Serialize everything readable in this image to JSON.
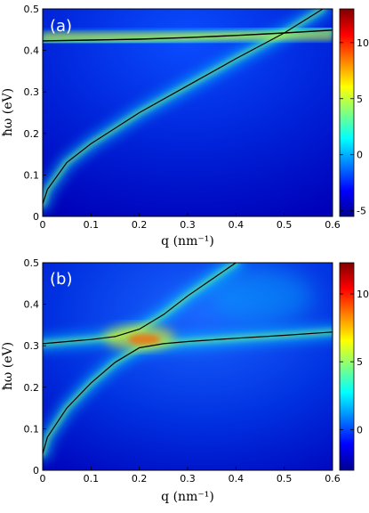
{
  "colors": {
    "colormap": [
      "#00008f",
      "#0000ff",
      "#0080ff",
      "#00ffff",
      "#80ff80",
      "#ffff00",
      "#ff8000",
      "#ff0000",
      "#800000"
    ],
    "curve": "#000000",
    "panel_label": "#ffffff"
  },
  "chart_data": [
    {
      "type": "heatmap",
      "panel_label": "(a)",
      "xlabel": "q (nm⁻¹)",
      "ylabel": "ħω (eV)",
      "xlim": [
        0,
        0.6
      ],
      "ylim": [
        0,
        0.5
      ],
      "x_ticks": [
        "0",
        "0.1",
        "0.2",
        "0.3",
        "0.4",
        "0.5",
        "0.6"
      ],
      "y_ticks": [
        "0",
        "0.1",
        "0.2",
        "0.3",
        "0.4",
        "0.5"
      ],
      "colorbar": {
        "range": [
          -5.5,
          13
        ],
        "ticks": [
          "-5",
          "0",
          "5",
          "10"
        ]
      },
      "series": [
        {
          "x": [
            0.0,
            0.1,
            0.2,
            0.3,
            0.4,
            0.5,
            0.6
          ],
          "y": [
            0.423,
            0.425,
            0.427,
            0.431,
            0.436,
            0.442,
            0.449
          ]
        },
        {
          "x": [
            0.0,
            0.01,
            0.05,
            0.1,
            0.2,
            0.3,
            0.4,
            0.5,
            0.58
          ],
          "y": [
            0.03,
            0.065,
            0.13,
            0.175,
            0.25,
            0.315,
            0.38,
            0.442,
            0.5
          ]
        }
      ]
    },
    {
      "type": "heatmap",
      "panel_label": "(b)",
      "xlabel": "q (nm⁻¹)",
      "ylabel": "ħω (eV)",
      "xlim": [
        0,
        0.6
      ],
      "ylim": [
        0,
        0.5
      ],
      "x_ticks": [
        "0",
        "0.1",
        "0.2",
        "0.3",
        "0.4",
        "0.5",
        "0.6"
      ],
      "y_ticks": [
        "0",
        "0.1",
        "0.2",
        "0.3",
        "0.4",
        "0.5"
      ],
      "colorbar": {
        "range": [
          -3,
          12.3
        ],
        "ticks": [
          "0",
          "5",
          "10"
        ]
      },
      "series": [
        {
          "x": [
            0.0,
            0.05,
            0.1,
            0.15,
            0.2,
            0.25,
            0.3,
            0.35,
            0.4
          ],
          "y": [
            0.305,
            0.31,
            0.315,
            0.322,
            0.34,
            0.375,
            0.42,
            0.46,
            0.5
          ]
        },
        {
          "x": [
            0.0,
            0.01,
            0.05,
            0.1,
            0.15,
            0.2,
            0.25,
            0.3,
            0.4,
            0.5,
            0.6
          ],
          "y": [
            0.04,
            0.08,
            0.15,
            0.21,
            0.26,
            0.295,
            0.305,
            0.31,
            0.318,
            0.325,
            0.333
          ]
        }
      ]
    }
  ]
}
